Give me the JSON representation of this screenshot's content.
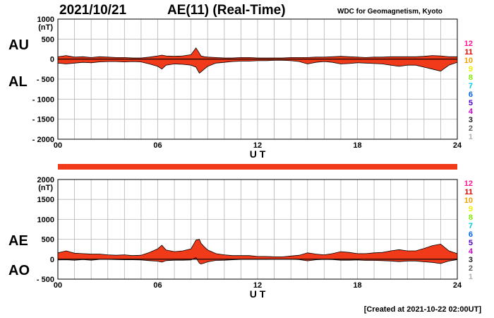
{
  "header": {
    "date": "2021/10/21",
    "title": "AE(11) (Real-Time)",
    "source": "WDC for Geomagnetism, Kyoto",
    "created": "[Created at 2021-10-22 02:00UT]"
  },
  "colors": {
    "fill": "#f03a1a",
    "outline": "#000000",
    "grid": "#b4b4b4"
  },
  "station_numbers": {
    "labels": [
      "12",
      "11",
      "10",
      "9",
      "8",
      "7",
      "6",
      "5",
      "4",
      "3",
      "2",
      "1"
    ],
    "colors": [
      "#ff1493",
      "#e60000",
      "#f0a000",
      "#f0f000",
      "#80f000",
      "#00c8e6",
      "#0064e6",
      "#5000c8",
      "#c800c8",
      "#202020",
      "#606060",
      "#b0b0b0"
    ]
  },
  "chart_data": [
    {
      "type": "area",
      "panel": "AU / AL",
      "panel_labels": [
        "AU",
        "AL"
      ],
      "ylabel": "(nT)",
      "xlabel": "U T",
      "ylim": [
        -2000,
        1000
      ],
      "yticks": [
        -2000,
        -1500,
        -1000,
        -500,
        0,
        500,
        1000
      ],
      "ytick_labels": [
        "- 2000",
        "- 1500",
        "- 1000",
        "- 500",
        "0",
        "500",
        "1000"
      ],
      "xlim": [
        0,
        24
      ],
      "xticks": [
        0,
        6,
        12,
        18,
        24
      ],
      "xtick_labels": [
        "00",
        "06",
        "12",
        "18",
        "24"
      ],
      "grid": true,
      "x": [
        0,
        0.5,
        1,
        1.5,
        2,
        2.5,
        3,
        3.5,
        4,
        4.5,
        5,
        5.5,
        6,
        6.25,
        6.5,
        7,
        7.5,
        8,
        8.3,
        8.5,
        8.6,
        8.8,
        9,
        9.5,
        10,
        10.5,
        11,
        11.5,
        12,
        12.5,
        13,
        13.5,
        14,
        14.5,
        15,
        15.5,
        16,
        16.5,
        17,
        17.5,
        18,
        18.5,
        19,
        19.5,
        20,
        20.5,
        21,
        21.5,
        22,
        22.5,
        23,
        23.5,
        24
      ],
      "series": [
        {
          "name": "AU",
          "values": [
            60,
            90,
            50,
            60,
            40,
            60,
            50,
            40,
            40,
            30,
            30,
            50,
            80,
            100,
            80,
            70,
            80,
            110,
            280,
            150,
            80,
            60,
            50,
            40,
            30,
            30,
            40,
            40,
            30,
            30,
            30,
            30,
            40,
            40,
            40,
            50,
            50,
            60,
            70,
            60,
            50,
            40,
            50,
            50,
            60,
            60,
            60,
            60,
            70,
            90,
            80,
            60,
            60
          ]
        },
        {
          "name": "AL",
          "values": [
            -100,
            -120,
            -100,
            -80,
            -90,
            -70,
            -60,
            -60,
            -70,
            -60,
            -70,
            -120,
            -180,
            -250,
            -150,
            -120,
            -130,
            -150,
            -200,
            -350,
            -320,
            -250,
            -180,
            -100,
            -80,
            -60,
            -50,
            -50,
            -40,
            -40,
            -30,
            -30,
            -40,
            -60,
            -120,
            -80,
            -60,
            -80,
            -120,
            -110,
            -90,
            -100,
            -110,
            -120,
            -150,
            -180,
            -150,
            -150,
            -200,
            -250,
            -300,
            -150,
            -80
          ]
        }
      ]
    },
    {
      "type": "area",
      "panel": "AE / AO",
      "panel_labels": [
        "AE",
        "AO"
      ],
      "ylabel": "(nT)",
      "xlabel": "U T",
      "ylim": [
        -500,
        2000
      ],
      "yticks": [
        -500,
        0,
        500,
        1000,
        1500,
        2000
      ],
      "ytick_labels": [
        "- 500",
        "0",
        "500",
        "1000",
        "1500",
        "2000"
      ],
      "xlim": [
        0,
        24
      ],
      "xticks": [
        0,
        6,
        12,
        18,
        24
      ],
      "xtick_labels": [
        "00",
        "06",
        "12",
        "18",
        "24"
      ],
      "grid": true,
      "x": [
        0,
        0.5,
        1,
        1.5,
        2,
        2.5,
        3,
        3.5,
        4,
        4.5,
        5,
        5.5,
        6,
        6.25,
        6.5,
        7,
        7.5,
        8,
        8.3,
        8.5,
        8.6,
        8.8,
        9,
        9.5,
        10,
        10.5,
        11,
        11.5,
        12,
        12.5,
        13,
        13.5,
        14,
        14.5,
        15,
        15.5,
        16,
        16.5,
        17,
        17.5,
        18,
        18.5,
        19,
        19.5,
        20,
        20.5,
        21,
        21.5,
        22,
        22.5,
        23,
        23.5,
        24
      ],
      "series": [
        {
          "name": "AE",
          "values": [
            160,
            210,
            150,
            140,
            130,
            130,
            110,
            100,
            110,
            90,
            100,
            170,
            260,
            350,
            230,
            190,
            210,
            260,
            480,
            500,
            400,
            310,
            230,
            140,
            110,
            90,
            90,
            90,
            70,
            70,
            60,
            60,
            80,
            100,
            160,
            130,
            110,
            140,
            190,
            170,
            140,
            140,
            160,
            170,
            210,
            240,
            210,
            210,
            270,
            340,
            380,
            210,
            140
          ]
        },
        {
          "name": "AO",
          "values": [
            -20,
            -15,
            -25,
            -10,
            -25,
            -5,
            -5,
            -10,
            -15,
            -15,
            -20,
            -35,
            -50,
            -75,
            -35,
            -25,
            -25,
            -20,
            40,
            -100,
            -120,
            -95,
            -65,
            -30,
            -25,
            -15,
            -5,
            -5,
            -5,
            -5,
            0,
            0,
            0,
            -10,
            -40,
            -15,
            -5,
            -10,
            -25,
            -25,
            -20,
            -30,
            -30,
            -35,
            -45,
            -60,
            -45,
            -45,
            -65,
            -80,
            -110,
            -45,
            -10
          ]
        }
      ]
    }
  ]
}
